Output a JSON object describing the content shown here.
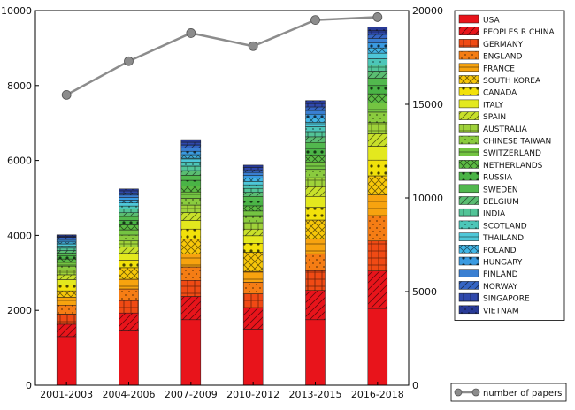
{
  "chart_data": {
    "type": "bar",
    "stacked": true,
    "categories": [
      "2001-2003",
      "2004-2006",
      "2007-2009",
      "2010-2012",
      "2013-2015",
      "2016-2018"
    ],
    "ylim_left": [
      0,
      10000
    ],
    "left_ticks": [
      "0",
      "2000",
      "4000",
      "6000",
      "8000",
      "10000"
    ],
    "ylim_right": [
      0,
      20000
    ],
    "right_ticks": [
      "0",
      "5000",
      "10000",
      "15000",
      "20000"
    ],
    "grid": false,
    "legend_position": "right",
    "series": [
      {
        "name": "USA",
        "color": "#e8141b",
        "pattern": "solid",
        "values": [
          1300,
          1450,
          1750,
          1500,
          1750,
          2050
        ]
      },
      {
        "name": "PEOPLES R CHINA",
        "color": "#e8141b",
        "pattern": "diag",
        "values": [
          330,
          480,
          620,
          560,
          780,
          1000
        ]
      },
      {
        "name": "GERMANY",
        "color": "#f04a14",
        "pattern": "cross",
        "values": [
          270,
          330,
          430,
          380,
          530,
          800
        ]
      },
      {
        "name": "ENGLAND",
        "color": "#f57d14",
        "pattern": "dots",
        "values": [
          240,
          310,
          360,
          310,
          450,
          670
        ]
      },
      {
        "name": "FRANCE",
        "color": "#f7a30f",
        "pattern": "hline",
        "values": [
          210,
          260,
          340,
          290,
          400,
          560
        ]
      },
      {
        "name": "SOUTH KOREA",
        "color": "#f7c70a",
        "pattern": "xhatch",
        "values": [
          170,
          310,
          400,
          510,
          500,
          510
        ]
      },
      {
        "name": "CANADA",
        "color": "#f2e10a",
        "pattern": "bigdots",
        "values": [
          160,
          200,
          270,
          240,
          340,
          420
        ]
      },
      {
        "name": "ITALY",
        "color": "#e3e81e",
        "pattern": "solid",
        "values": [
          140,
          180,
          230,
          200,
          290,
          370
        ]
      },
      {
        "name": "SPAIN",
        "color": "#c8e02a",
        "pattern": "diag",
        "values": [
          130,
          170,
          210,
          180,
          260,
          330
        ]
      },
      {
        "name": "AUSTRALIA",
        "color": "#9fd23a",
        "pattern": "cross",
        "values": [
          120,
          160,
          200,
          170,
          240,
          300
        ]
      },
      {
        "name": "CHINESE TAIWAN",
        "color": "#8acb3e",
        "pattern": "dots",
        "values": [
          110,
          160,
          180,
          160,
          220,
          280
        ]
      },
      {
        "name": "SWITZERLAND",
        "color": "#74c442",
        "pattern": "hline",
        "values": [
          100,
          140,
          170,
          150,
          200,
          250
        ]
      },
      {
        "name": "NETHERLANDS",
        "color": "#5cbc44",
        "pattern": "xhatch",
        "values": [
          90,
          130,
          160,
          140,
          190,
          240
        ]
      },
      {
        "name": "RUSSIA",
        "color": "#4ab446",
        "pattern": "bigdots",
        "values": [
          80,
          120,
          150,
          130,
          170,
          220
        ]
      },
      {
        "name": "SWEDEN",
        "color": "#52b84e",
        "pattern": "solid",
        "values": [
          75,
          105,
          135,
          120,
          160,
          200
        ]
      },
      {
        "name": "BELGIUM",
        "color": "#5abd72",
        "pattern": "diag",
        "values": [
          70,
          100,
          125,
          110,
          150,
          185
        ]
      },
      {
        "name": "INDIA",
        "color": "#52c497",
        "pattern": "cross",
        "values": [
          65,
          95,
          120,
          105,
          140,
          170
        ]
      },
      {
        "name": "SCOTLAND",
        "color": "#4cc6b8",
        "pattern": "dots",
        "values": [
          60,
          85,
          110,
          95,
          130,
          160
        ]
      },
      {
        "name": "THAILAND",
        "color": "#4ec7d8",
        "pattern": "hline",
        "values": [
          55,
          80,
          100,
          90,
          120,
          150
        ]
      },
      {
        "name": "POLAND",
        "color": "#42b6e6",
        "pattern": "xhatch",
        "values": [
          50,
          75,
          95,
          85,
          110,
          140
        ]
      },
      {
        "name": "HUNGARY",
        "color": "#3a9ae0",
        "pattern": "bigdots",
        "values": [
          45,
          70,
          90,
          80,
          105,
          130
        ]
      },
      {
        "name": "FINLAND",
        "color": "#3a7fd2",
        "pattern": "solid",
        "values": [
          40,
          65,
          85,
          75,
          100,
          120
        ]
      },
      {
        "name": "NORWAY",
        "color": "#3565c4",
        "pattern": "diag",
        "values": [
          38,
          60,
          80,
          70,
          95,
          110
        ]
      },
      {
        "name": "SINGAPORE",
        "color": "#2f48ac",
        "pattern": "cross",
        "values": [
          36,
          55,
          75,
          65,
          90,
          100
        ]
      },
      {
        "name": "VIETNAM",
        "color": "#283a96",
        "pattern": "dots",
        "values": [
          30,
          50,
          70,
          60,
          80,
          100
        ]
      }
    ],
    "line_series": {
      "name": "number of papers",
      "axis": "right",
      "color": "#8c8c8c",
      "values": [
        15500,
        17300,
        18800,
        18100,
        19500,
        19650
      ]
    }
  }
}
